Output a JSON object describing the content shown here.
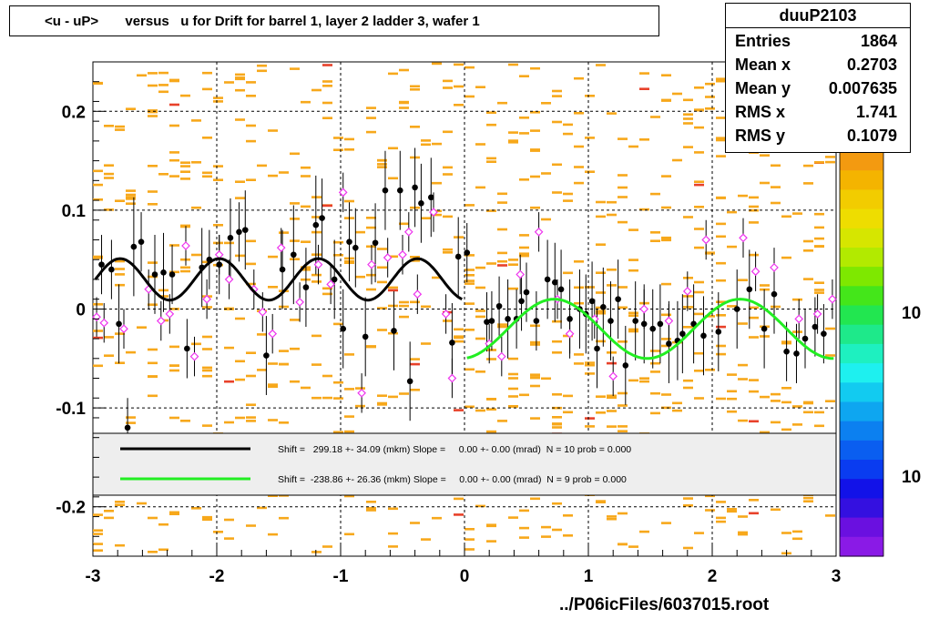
{
  "title": "<u - uP>       versus   u for Drift for barrel 1, layer 2 ladder 3, wafer 1",
  "footer": "../P06icFiles/6037015.root",
  "stats": {
    "name": "duuP2103",
    "rows": [
      {
        "label": "Entries",
        "value": "1864"
      },
      {
        "label": "Mean x",
        "value": "0.2703"
      },
      {
        "label": "Mean y",
        "value": "0.007635"
      },
      {
        "label": "RMS x",
        "value": "1.741"
      },
      {
        "label": "RMS y",
        "value": "0.1079"
      }
    ]
  },
  "colors": {
    "background_cells": "#f7a81b",
    "hot_cells": "#e8412a",
    "fit_left": "#000000",
    "fit_right": "#22ee22",
    "profile_black": "#000000",
    "profile_open": "#ee33ee"
  },
  "palette_labels": [
    "10",
    "10"
  ],
  "chart_data": {
    "type": "scatter",
    "xlim": [
      -3,
      3
    ],
    "ylim": [
      -0.25,
      0.25
    ],
    "xticks": [
      -3,
      -2,
      -1,
      0,
      1,
      2,
      3
    ],
    "xtick_labels": [
      "-3",
      "-2",
      "-1",
      "0",
      "1",
      "2",
      "3"
    ],
    "yticks": [
      -0.2,
      -0.1,
      0,
      0.1,
      0.2
    ],
    "ytick_labels": [
      "-0.2",
      "-0.1",
      "0",
      "0.1",
      "0.2"
    ],
    "grid": true,
    "legend": [
      {
        "color": "#000000",
        "text": "Shift =   299.18 +- 34.09 (mkm) Slope =     0.00 +- 0.00 (mrad)  N = 10 prob = 0.000"
      },
      {
        "color": "#22ee22",
        "text": "Shift =  -238.86 +- 26.36 (mkm) Slope =     0.00 +- 0.00 (mrad)  N = 9 prob = 0.000"
      }
    ],
    "legend_position": "bottom",
    "series": [
      {
        "marker": "filled-circle",
        "color": "#000000",
        "points": [
          {
            "x": -2.93,
            "y": 0.045,
            "e": 0.03
          },
          {
            "x": -2.85,
            "y": 0.04,
            "e": 0.03
          },
          {
            "x": -2.79,
            "y": -0.015,
            "e": 0.04
          },
          {
            "x": -2.72,
            "y": -0.12,
            "e": 0.03
          },
          {
            "x": -2.67,
            "y": 0.063,
            "e": 0.05
          },
          {
            "x": -2.61,
            "y": 0.068,
            "e": 0.03
          },
          {
            "x": -2.5,
            "y": 0.035,
            "e": 0.04
          },
          {
            "x": -2.43,
            "y": 0.037,
            "e": 0.04
          },
          {
            "x": -2.36,
            "y": 0.035,
            "e": 0.03
          },
          {
            "x": -2.24,
            "y": -0.04,
            "e": 0.03
          },
          {
            "x": -2.12,
            "y": 0.042,
            "e": 0.04
          },
          {
            "x": -2.06,
            "y": 0.05,
            "e": 0.03
          },
          {
            "x": -1.98,
            "y": 0.045,
            "e": 0.03
          },
          {
            "x": -1.89,
            "y": 0.072,
            "e": 0.04
          },
          {
            "x": -1.82,
            "y": 0.078,
            "e": 0.03
          },
          {
            "x": -1.77,
            "y": 0.08,
            "e": 0.04
          },
          {
            "x": -1.6,
            "y": -0.047,
            "e": 0.04
          },
          {
            "x": -1.47,
            "y": 0.04,
            "e": 0.04
          },
          {
            "x": -1.38,
            "y": 0.055,
            "e": 0.05
          },
          {
            "x": -1.28,
            "y": 0.022,
            "e": 0.04
          },
          {
            "x": -1.2,
            "y": 0.085,
            "e": 0.05
          },
          {
            "x": -1.15,
            "y": 0.092,
            "e": 0.04
          },
          {
            "x": -1.05,
            "y": 0.03,
            "e": 0.04
          },
          {
            "x": -0.98,
            "y": -0.02,
            "e": 0.04
          },
          {
            "x": -0.93,
            "y": 0.068,
            "e": 0.04
          },
          {
            "x": -0.88,
            "y": 0.062,
            "e": 0.04
          },
          {
            "x": -0.8,
            "y": -0.028,
            "e": 0.04
          },
          {
            "x": -0.72,
            "y": 0.067,
            "e": 0.04
          },
          {
            "x": -0.64,
            "y": 0.12,
            "e": 0.04
          },
          {
            "x": -0.57,
            "y": -0.022,
            "e": 0.04
          },
          {
            "x": -0.52,
            "y": 0.12,
            "e": 0.04
          },
          {
            "x": -0.44,
            "y": -0.073,
            "e": 0.04
          },
          {
            "x": -0.4,
            "y": 0.123,
            "e": 0.04
          },
          {
            "x": -0.35,
            "y": 0.107,
            "e": 0.04
          },
          {
            "x": -0.27,
            "y": 0.113,
            "e": 0.04
          },
          {
            "x": -0.1,
            "y": -0.034,
            "e": 0.04
          },
          {
            "x": -0.05,
            "y": 0.053,
            "e": 0.04
          },
          {
            "x": 0.02,
            "y": 0.057,
            "e": 0.03
          },
          {
            "x": 0.18,
            "y": -0.013,
            "e": 0.03
          },
          {
            "x": 0.22,
            "y": -0.012,
            "e": 0.03
          },
          {
            "x": 0.28,
            "y": 0.003,
            "e": 0.03
          },
          {
            "x": 0.35,
            "y": -0.01,
            "e": 0.04
          },
          {
            "x": 0.42,
            "y": -0.01,
            "e": 0.03
          },
          {
            "x": 0.46,
            "y": 0.008,
            "e": 0.03
          },
          {
            "x": 0.5,
            "y": 0.017,
            "e": 0.03
          },
          {
            "x": 0.58,
            "y": -0.012,
            "e": 0.03
          },
          {
            "x": 0.67,
            "y": 0.03,
            "e": 0.04
          },
          {
            "x": 0.73,
            "y": 0.027,
            "e": 0.04
          },
          {
            "x": 0.78,
            "y": 0.02,
            "e": 0.04
          },
          {
            "x": 0.85,
            "y": -0.01,
            "e": 0.04
          },
          {
            "x": 0.93,
            "y": 0.0,
            "e": 0.04
          },
          {
            "x": 0.98,
            "y": -0.005,
            "e": 0.04
          },
          {
            "x": 1.03,
            "y": 0.008,
            "e": 0.04
          },
          {
            "x": 1.07,
            "y": -0.04,
            "e": 0.04
          },
          {
            "x": 1.12,
            "y": 0.002,
            "e": 0.04
          },
          {
            "x": 1.18,
            "y": -0.012,
            "e": 0.04
          },
          {
            "x": 1.24,
            "y": 0.01,
            "e": 0.04
          },
          {
            "x": 1.3,
            "y": -0.057,
            "e": 0.04
          },
          {
            "x": 1.38,
            "y": -0.012,
            "e": 0.04
          },
          {
            "x": 1.45,
            "y": -0.015,
            "e": 0.04
          },
          {
            "x": 1.52,
            "y": -0.02,
            "e": 0.04
          },
          {
            "x": 1.58,
            "y": -0.015,
            "e": 0.04
          },
          {
            "x": 1.65,
            "y": -0.035,
            "e": 0.04
          },
          {
            "x": 1.72,
            "y": -0.032,
            "e": 0.04
          },
          {
            "x": 1.76,
            "y": -0.025,
            "e": 0.04
          },
          {
            "x": 1.85,
            "y": -0.015,
            "e": 0.04
          },
          {
            "x": 1.93,
            "y": -0.027,
            "e": 0.04
          },
          {
            "x": 2.05,
            "y": -0.023,
            "e": 0.04
          },
          {
            "x": 2.2,
            "y": 0.0,
            "e": 0.04
          },
          {
            "x": 2.3,
            "y": 0.02,
            "e": 0.04
          },
          {
            "x": 2.42,
            "y": -0.02,
            "e": 0.04
          },
          {
            "x": 2.5,
            "y": 0.015,
            "e": 0.04
          },
          {
            "x": 2.6,
            "y": -0.043,
            "e": 0.03
          },
          {
            "x": 2.68,
            "y": -0.045,
            "e": 0.03
          },
          {
            "x": 2.75,
            "y": -0.03,
            "e": 0.03
          },
          {
            "x": 2.83,
            "y": -0.018,
            "e": 0.03
          },
          {
            "x": 2.9,
            "y": -0.025,
            "e": 0.03
          }
        ]
      },
      {
        "marker": "open-diamond",
        "color": "#ee33ee",
        "points": [
          {
            "x": -2.97,
            "y": -0.008,
            "e": 0.02
          },
          {
            "x": -2.91,
            "y": -0.014,
            "e": 0.02
          },
          {
            "x": -2.75,
            "y": -0.02,
            "e": 0.02
          },
          {
            "x": -2.55,
            "y": 0.02,
            "e": 0.02
          },
          {
            "x": -2.45,
            "y": -0.012,
            "e": 0.02
          },
          {
            "x": -2.38,
            "y": -0.005,
            "e": 0.02
          },
          {
            "x": -2.25,
            "y": 0.064,
            "e": 0.02
          },
          {
            "x": -2.18,
            "y": -0.048,
            "e": 0.02
          },
          {
            "x": -2.08,
            "y": 0.01,
            "e": 0.02
          },
          {
            "x": -1.98,
            "y": 0.055,
            "e": 0.02
          },
          {
            "x": -1.9,
            "y": 0.03,
            "e": 0.02
          },
          {
            "x": -1.7,
            "y": 0.02,
            "e": 0.02
          },
          {
            "x": -1.63,
            "y": -0.003,
            "e": 0.02
          },
          {
            "x": -1.55,
            "y": -0.025,
            "e": 0.02
          },
          {
            "x": -1.48,
            "y": 0.062,
            "e": 0.02
          },
          {
            "x": -1.33,
            "y": 0.007,
            "e": 0.02
          },
          {
            "x": -1.18,
            "y": 0.045,
            "e": 0.02
          },
          {
            "x": -1.08,
            "y": 0.025,
            "e": 0.02
          },
          {
            "x": -0.98,
            "y": 0.118,
            "e": 0.02
          },
          {
            "x": -0.83,
            "y": -0.085,
            "e": 0.02
          },
          {
            "x": -0.75,
            "y": 0.045,
            "e": 0.02
          },
          {
            "x": -0.62,
            "y": 0.052,
            "e": 0.02
          },
          {
            "x": -0.5,
            "y": 0.055,
            "e": 0.02
          },
          {
            "x": -0.45,
            "y": 0.078,
            "e": 0.02
          },
          {
            "x": -0.38,
            "y": 0.015,
            "e": 0.02
          },
          {
            "x": -0.25,
            "y": 0.098,
            "e": 0.02
          },
          {
            "x": -0.15,
            "y": -0.005,
            "e": 0.02
          },
          {
            "x": -0.1,
            "y": -0.07,
            "e": 0.02
          },
          {
            "x": 0.2,
            "y": -0.035,
            "e": 0.02
          },
          {
            "x": 0.3,
            "y": -0.048,
            "e": 0.02
          },
          {
            "x": 0.45,
            "y": 0.035,
            "e": 0.02
          },
          {
            "x": 0.6,
            "y": 0.078,
            "e": 0.02
          },
          {
            "x": 0.75,
            "y": 0.01,
            "e": 0.02
          },
          {
            "x": 0.85,
            "y": -0.025,
            "e": 0.02
          },
          {
            "x": 1.05,
            "y": -0.01,
            "e": 0.02
          },
          {
            "x": 1.2,
            "y": -0.068,
            "e": 0.02
          },
          {
            "x": 1.45,
            "y": 0.0,
            "e": 0.02
          },
          {
            "x": 1.65,
            "y": -0.012,
            "e": 0.02
          },
          {
            "x": 1.8,
            "y": 0.018,
            "e": 0.02
          },
          {
            "x": 1.95,
            "y": 0.07,
            "e": 0.02
          },
          {
            "x": 2.25,
            "y": 0.072,
            "e": 0.02
          },
          {
            "x": 2.35,
            "y": 0.038,
            "e": 0.02
          },
          {
            "x": 2.5,
            "y": 0.042,
            "e": 0.02
          },
          {
            "x": 2.7,
            "y": -0.01,
            "e": 0.02
          },
          {
            "x": 2.85,
            "y": -0.005,
            "e": 0.02
          },
          {
            "x": 2.97,
            "y": 0.01,
            "e": 0.02
          }
        ]
      }
    ],
    "fits": [
      {
        "name": "fit-left",
        "color": "#000000",
        "xrange": [
          -2.98,
          -0.02
        ],
        "offset": 0.03,
        "amplitude": 0.021,
        "period": 0.8,
        "phase": -2.98
      },
      {
        "name": "fit-right",
        "color": "#22ee22",
        "xrange": [
          0.02,
          2.98
        ],
        "offset": -0.02,
        "amplitude": 0.03,
        "period": 1.5,
        "phase": 0.35
      }
    ]
  }
}
